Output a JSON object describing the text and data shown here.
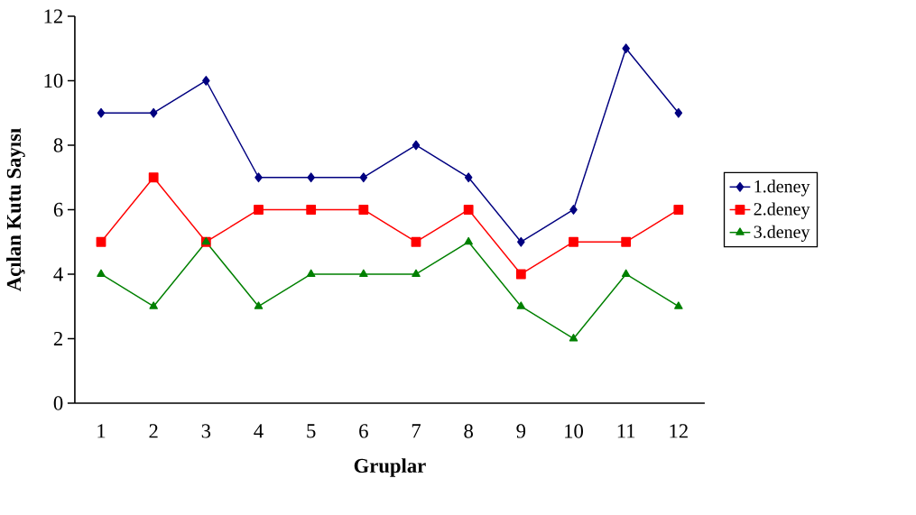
{
  "chart_data": {
    "type": "line",
    "xlabel": "Gruplar",
    "ylabel": "Açılan Kutu Sayısı",
    "categories": [
      "1",
      "2",
      "3",
      "4",
      "5",
      "6",
      "7",
      "8",
      "9",
      "10",
      "11",
      "12"
    ],
    "ylim": [
      0,
      12
    ],
    "yticks": [
      0,
      2,
      4,
      6,
      8,
      10,
      12
    ],
    "grid": false,
    "legend": "right",
    "line_style": "solid",
    "series": [
      {
        "name": "1.deney",
        "color": "#000080",
        "marker": "diamond",
        "values": [
          9,
          9,
          10,
          7,
          7,
          7,
          8,
          7,
          5,
          6,
          11,
          9
        ]
      },
      {
        "name": "2.deney",
        "color": "#ff0000",
        "marker": "square",
        "values": [
          5,
          7,
          5,
          6,
          6,
          6,
          5,
          6,
          4,
          5,
          5,
          6
        ]
      },
      {
        "name": "3.deney",
        "color": "#008000",
        "marker": "triangle",
        "values": [
          4,
          3,
          5,
          3,
          4,
          4,
          4,
          5,
          3,
          2,
          4,
          3
        ]
      }
    ]
  }
}
